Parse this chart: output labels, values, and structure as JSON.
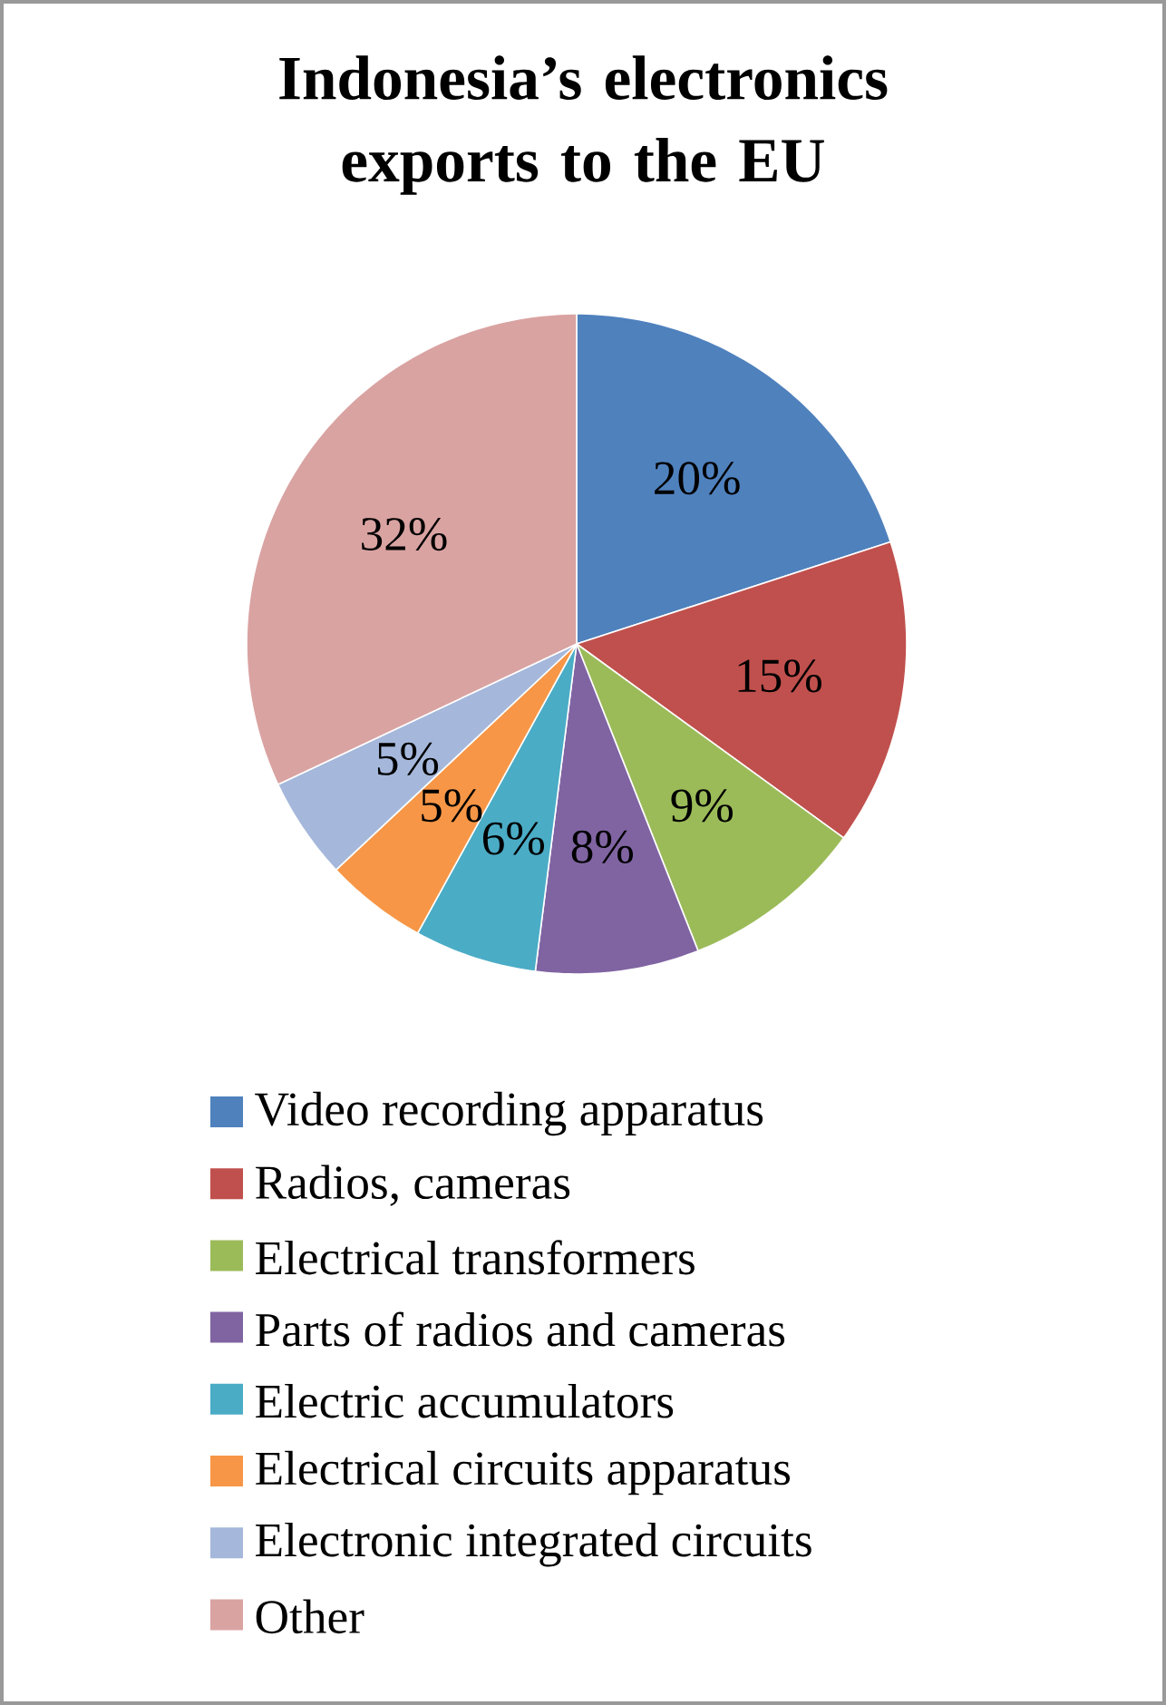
{
  "chart_data": {
    "type": "pie",
    "title": "Indonesia’s electronics exports to the EU",
    "categories": [
      "Video recording apparatus",
      "Radios, cameras",
      "Electrical transformers",
      "Parts of radios and cameras",
      "Electric accumulators",
      "Electrical circuits apparatus",
      "Electronic integrated circuits",
      "Other"
    ],
    "values": [
      20,
      15,
      9,
      8,
      6,
      5,
      5,
      32
    ],
    "value_labels": [
      "20%",
      "15%",
      "9%",
      "8%",
      "6%",
      "5%",
      "5%",
      "32%"
    ],
    "colors": [
      "#4f81bd",
      "#c0504d",
      "#9bbb59",
      "#8064a2",
      "#4bacc6",
      "#f79646",
      "#a5b8db",
      "#d9a3a2"
    ],
    "legend": "bottom"
  }
}
